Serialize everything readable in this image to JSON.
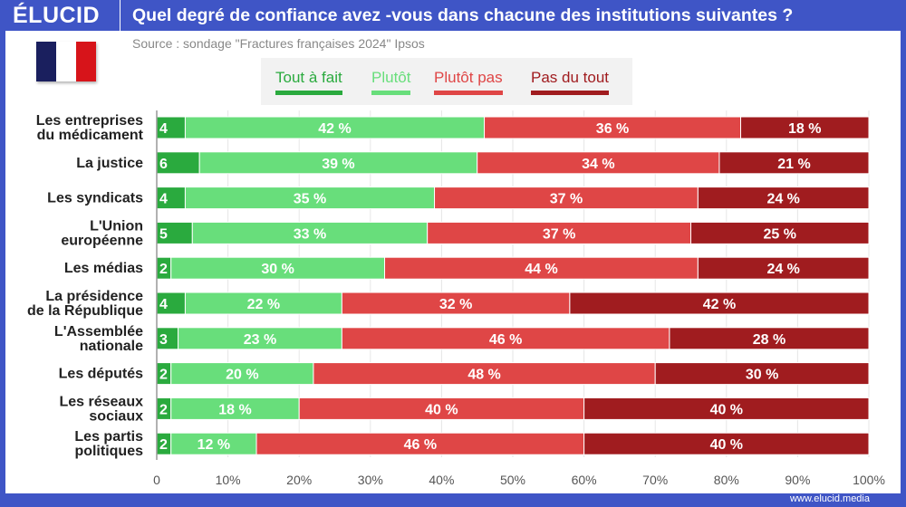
{
  "header": {
    "logo": "ÉLUCID",
    "title": "Quel degré de confiance avez -vous dans chacune des institutions suivantes ?"
  },
  "source": "Source : sondage \"Fractures françaises 2024\" Ipsos",
  "footer": "www.elucid.media",
  "colors": {
    "brand": "#3f55c6",
    "tout_a_fait": "#2aaa3e",
    "plutot": "#68de7b",
    "plutot_pas": "#df4646",
    "pas_du_tout": "#a01c1f"
  },
  "chart_data": {
    "type": "bar",
    "orientation": "horizontal",
    "stacked": true,
    "categories": [
      "Les entreprises\ndu médicament",
      "La justice",
      "Les syndicats",
      "L'Union\neuropéenne",
      "Les médias",
      "La présidence\nde la République",
      "L'Assemblée\nnationale",
      "Les députés",
      "Les réseaux\nsociaux",
      "Les partis\npolitiques"
    ],
    "series": [
      {
        "name": "Tout à fait",
        "color": "#2aaa3e",
        "values": [
          4,
          6,
          4,
          5,
          2,
          4,
          3,
          2,
          2,
          2
        ],
        "labels": [
          "4",
          "6",
          "4",
          "5",
          "2",
          "4",
          "3",
          "2",
          "2",
          "2"
        ]
      },
      {
        "name": "Plutôt",
        "color": "#68de7b",
        "values": [
          42,
          39,
          35,
          33,
          30,
          22,
          23,
          20,
          18,
          12
        ],
        "labels": [
          "42 %",
          "39 %",
          "35 %",
          "33 %",
          "30 %",
          "22 %",
          "23 %",
          "20 %",
          "18 %",
          "12 %"
        ]
      },
      {
        "name": "Plutôt pas",
        "color": "#df4646",
        "values": [
          36,
          34,
          37,
          37,
          44,
          32,
          46,
          48,
          40,
          46
        ],
        "labels": [
          "36 %",
          "34 %",
          "37 %",
          "37 %",
          "44 %",
          "32 %",
          "46 %",
          "48 %",
          "40 %",
          "46 %"
        ]
      },
      {
        "name": "Pas du tout",
        "color": "#a01c1f",
        "values": [
          18,
          21,
          24,
          25,
          24,
          42,
          28,
          30,
          40,
          40
        ],
        "labels": [
          "18 %",
          "21 %",
          "24 %",
          "25 %",
          "24 %",
          "42 %",
          "28 %",
          "30 %",
          "40 %",
          "40 %"
        ]
      }
    ],
    "xlim": [
      0,
      100
    ],
    "xticks": [
      "0",
      "10%",
      "20%",
      "30%",
      "40%",
      "50%",
      "60%",
      "70%",
      "80%",
      "90%",
      "100%"
    ],
    "legend": "top-center",
    "grid": true
  }
}
